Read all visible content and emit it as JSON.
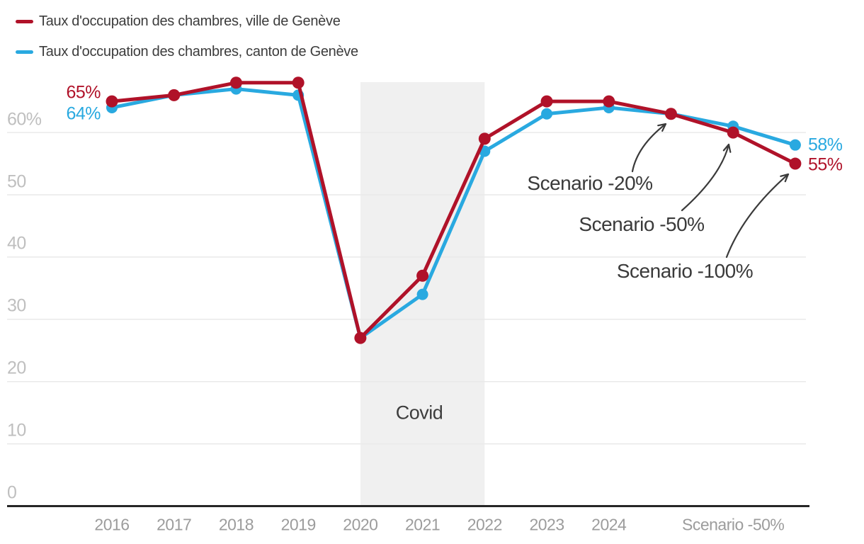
{
  "legend": {
    "series": [
      {
        "label": "Taux d'occupation des chambres, ville de Genève",
        "color": "#b01229"
      },
      {
        "label": "Taux d'occupation des chambres, canton de Genève",
        "color": "#29a9e0"
      }
    ]
  },
  "chart_data": {
    "type": "line",
    "categories": [
      "2016",
      "2017",
      "2018",
      "2019",
      "2020",
      "2021",
      "2022",
      "2023",
      "2024",
      "Scenario -20%",
      "Scenario -50%",
      "Scenario -100%"
    ],
    "series": [
      {
        "name": "Taux d'occupation des chambres, ville de Genève",
        "color": "#b01229",
        "values": [
          65,
          66,
          68,
          68,
          27,
          37,
          59,
          65,
          65,
          63,
          60,
          55
        ]
      },
      {
        "name": "Taux d'occupation des chambres, canton de Genève",
        "color": "#29a9e0",
        "values": [
          64,
          66,
          67,
          66,
          27,
          34,
          57,
          63,
          64,
          63,
          61,
          58
        ]
      }
    ],
    "ylim": [
      0,
      70
    ],
    "yticks": [
      {
        "value": 0,
        "label": "0"
      },
      {
        "value": 10,
        "label": "10"
      },
      {
        "value": 20,
        "label": "20"
      },
      {
        "value": 30,
        "label": "30"
      },
      {
        "value": 40,
        "label": "40"
      },
      {
        "value": 50,
        "label": "50"
      },
      {
        "value": 60,
        "label": "60%"
      }
    ],
    "x_axis_ticks": [
      {
        "index": 0,
        "label": "2016"
      },
      {
        "index": 1,
        "label": "2017"
      },
      {
        "index": 2,
        "label": "2018"
      },
      {
        "index": 3,
        "label": "2019"
      },
      {
        "index": 4,
        "label": "2020"
      },
      {
        "index": 5,
        "label": "2021"
      },
      {
        "index": 6,
        "label": "2022"
      },
      {
        "index": 7,
        "label": "2023"
      },
      {
        "index": 8,
        "label": "2024"
      },
      {
        "index": 10,
        "label": "Scenario -50%"
      }
    ],
    "grid": "horizontal",
    "legend_position": "top-left",
    "band": {
      "label": "Covid",
      "from_category": "2020",
      "to_category": "2022",
      "from_index": 4,
      "to_index": 6
    },
    "point_labels": [
      {
        "text": "65%",
        "series": 0,
        "index": 0,
        "side": "left"
      },
      {
        "text": "64%",
        "series": 1,
        "index": 0,
        "side": "left"
      },
      {
        "text": "58%",
        "series": 1,
        "index": 11,
        "side": "right"
      },
      {
        "text": "55%",
        "series": 0,
        "index": 11,
        "side": "right"
      }
    ],
    "annotations": [
      {
        "text": "Scenario -20%",
        "target_category": "Scenario -20%"
      },
      {
        "text": "Scenario -50%",
        "target_category": "Scenario -50%"
      },
      {
        "text": "Scenario -100%",
        "target_category": "Scenario -100%"
      }
    ]
  },
  "colors": {
    "series_ville": "#b01229",
    "series_canton": "#29a9e0",
    "band": "#f0f0f0",
    "grid": "#e9e9e9",
    "axis": "#262626",
    "x_labels": "#9c9c9c",
    "y_labels": "#bfbfbf",
    "legend_text": "#3c3c3c",
    "annotation_text": "#3a3a3a",
    "covid_text": "#3d3d3d"
  }
}
